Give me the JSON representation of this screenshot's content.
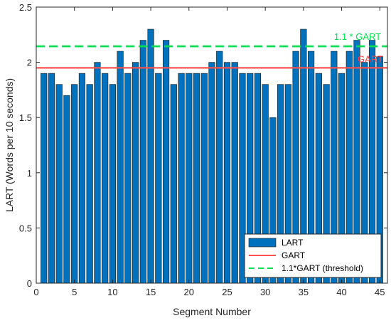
{
  "chart_data": {
    "type": "bar",
    "title": "",
    "xlabel": "Segment Number",
    "ylabel": "LART (Words per 10 seconds)",
    "xlim": [
      0,
      46
    ],
    "ylim": [
      0,
      2.5
    ],
    "xticks": [
      0,
      5,
      10,
      15,
      20,
      25,
      30,
      35,
      40,
      45
    ],
    "yticks": [
      0,
      0.5,
      1,
      1.5,
      2,
      2.5
    ],
    "xtick_labels": [
      "0",
      "5",
      "10",
      "15",
      "20",
      "25",
      "30",
      "35",
      "40",
      "45"
    ],
    "ytick_labels": [
      "0",
      "0.5",
      "1",
      "1.5",
      "2",
      "2.5"
    ],
    "grid": false,
    "legend_position": "bottom-right",
    "x": [
      1,
      2,
      3,
      4,
      5,
      6,
      7,
      8,
      9,
      10,
      11,
      12,
      13,
      14,
      15,
      16,
      17,
      18,
      19,
      20,
      21,
      22,
      23,
      24,
      25,
      26,
      27,
      28,
      29,
      30,
      31,
      32,
      33,
      34,
      35,
      36,
      37,
      38,
      39,
      40,
      41,
      42,
      43,
      44,
      45
    ],
    "values": [
      1.9,
      1.9,
      1.8,
      1.7,
      1.8,
      1.9,
      1.8,
      2.0,
      1.9,
      1.8,
      2.1,
      1.9,
      2.0,
      2.2,
      2.3,
      1.9,
      2.2,
      1.8,
      1.9,
      1.9,
      1.9,
      1.9,
      2.0,
      2.1,
      2.0,
      2.0,
      1.9,
      1.9,
      1.9,
      1.8,
      1.5,
      1.8,
      1.8,
      2.1,
      2.3,
      2.1,
      1.9,
      1.8,
      2.1,
      1.9,
      2.1,
      2.2,
      2.0,
      2.2,
      2.05
    ],
    "series": [
      {
        "name": "LART",
        "kind": "bar",
        "color": "#0072BD"
      },
      {
        "name": "GART",
        "kind": "hline",
        "y": 1.95,
        "color": "#FF5050"
      },
      {
        "name": "1.1*GART (threshold)",
        "kind": "hline-dashed",
        "y": 2.145,
        "color": "#00E04C"
      }
    ],
    "annotations": [
      {
        "text": "1.1 * GART",
        "color": "#00E04C"
      },
      {
        "text": "GART",
        "color": "#FF4040"
      }
    ]
  }
}
